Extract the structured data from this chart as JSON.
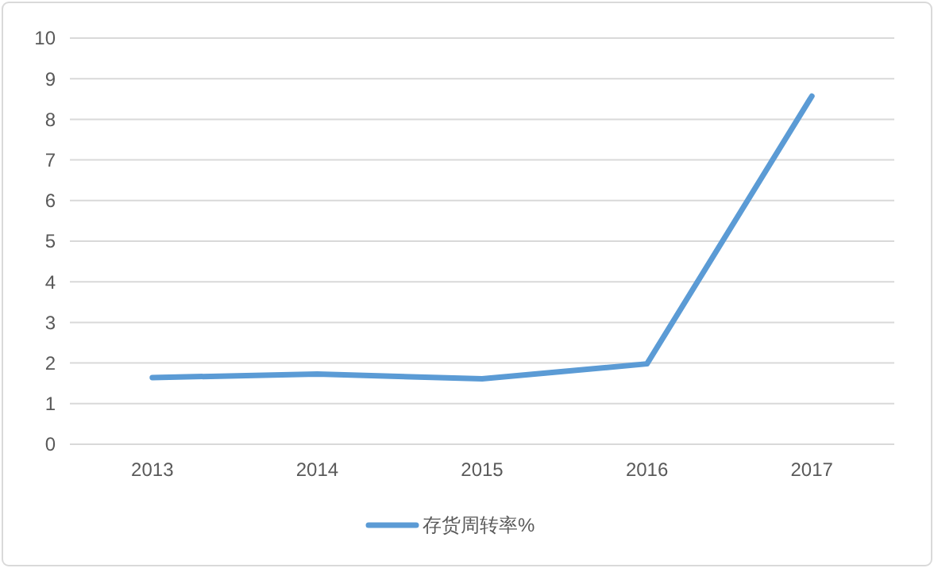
{
  "chart_data": {
    "type": "line",
    "categories": [
      "2013",
      "2014",
      "2015",
      "2016",
      "2017"
    ],
    "series": [
      {
        "name": "存货周转率%",
        "color": "#5b9bd5",
        "values": [
          1.64,
          1.73,
          1.61,
          1.98,
          8.57
        ]
      }
    ],
    "ylim": [
      0,
      10
    ],
    "yticks": [
      0,
      1,
      2,
      3,
      4,
      5,
      6,
      7,
      8,
      9,
      10
    ],
    "grid": "y",
    "legend": "bottom",
    "marker": "none"
  }
}
